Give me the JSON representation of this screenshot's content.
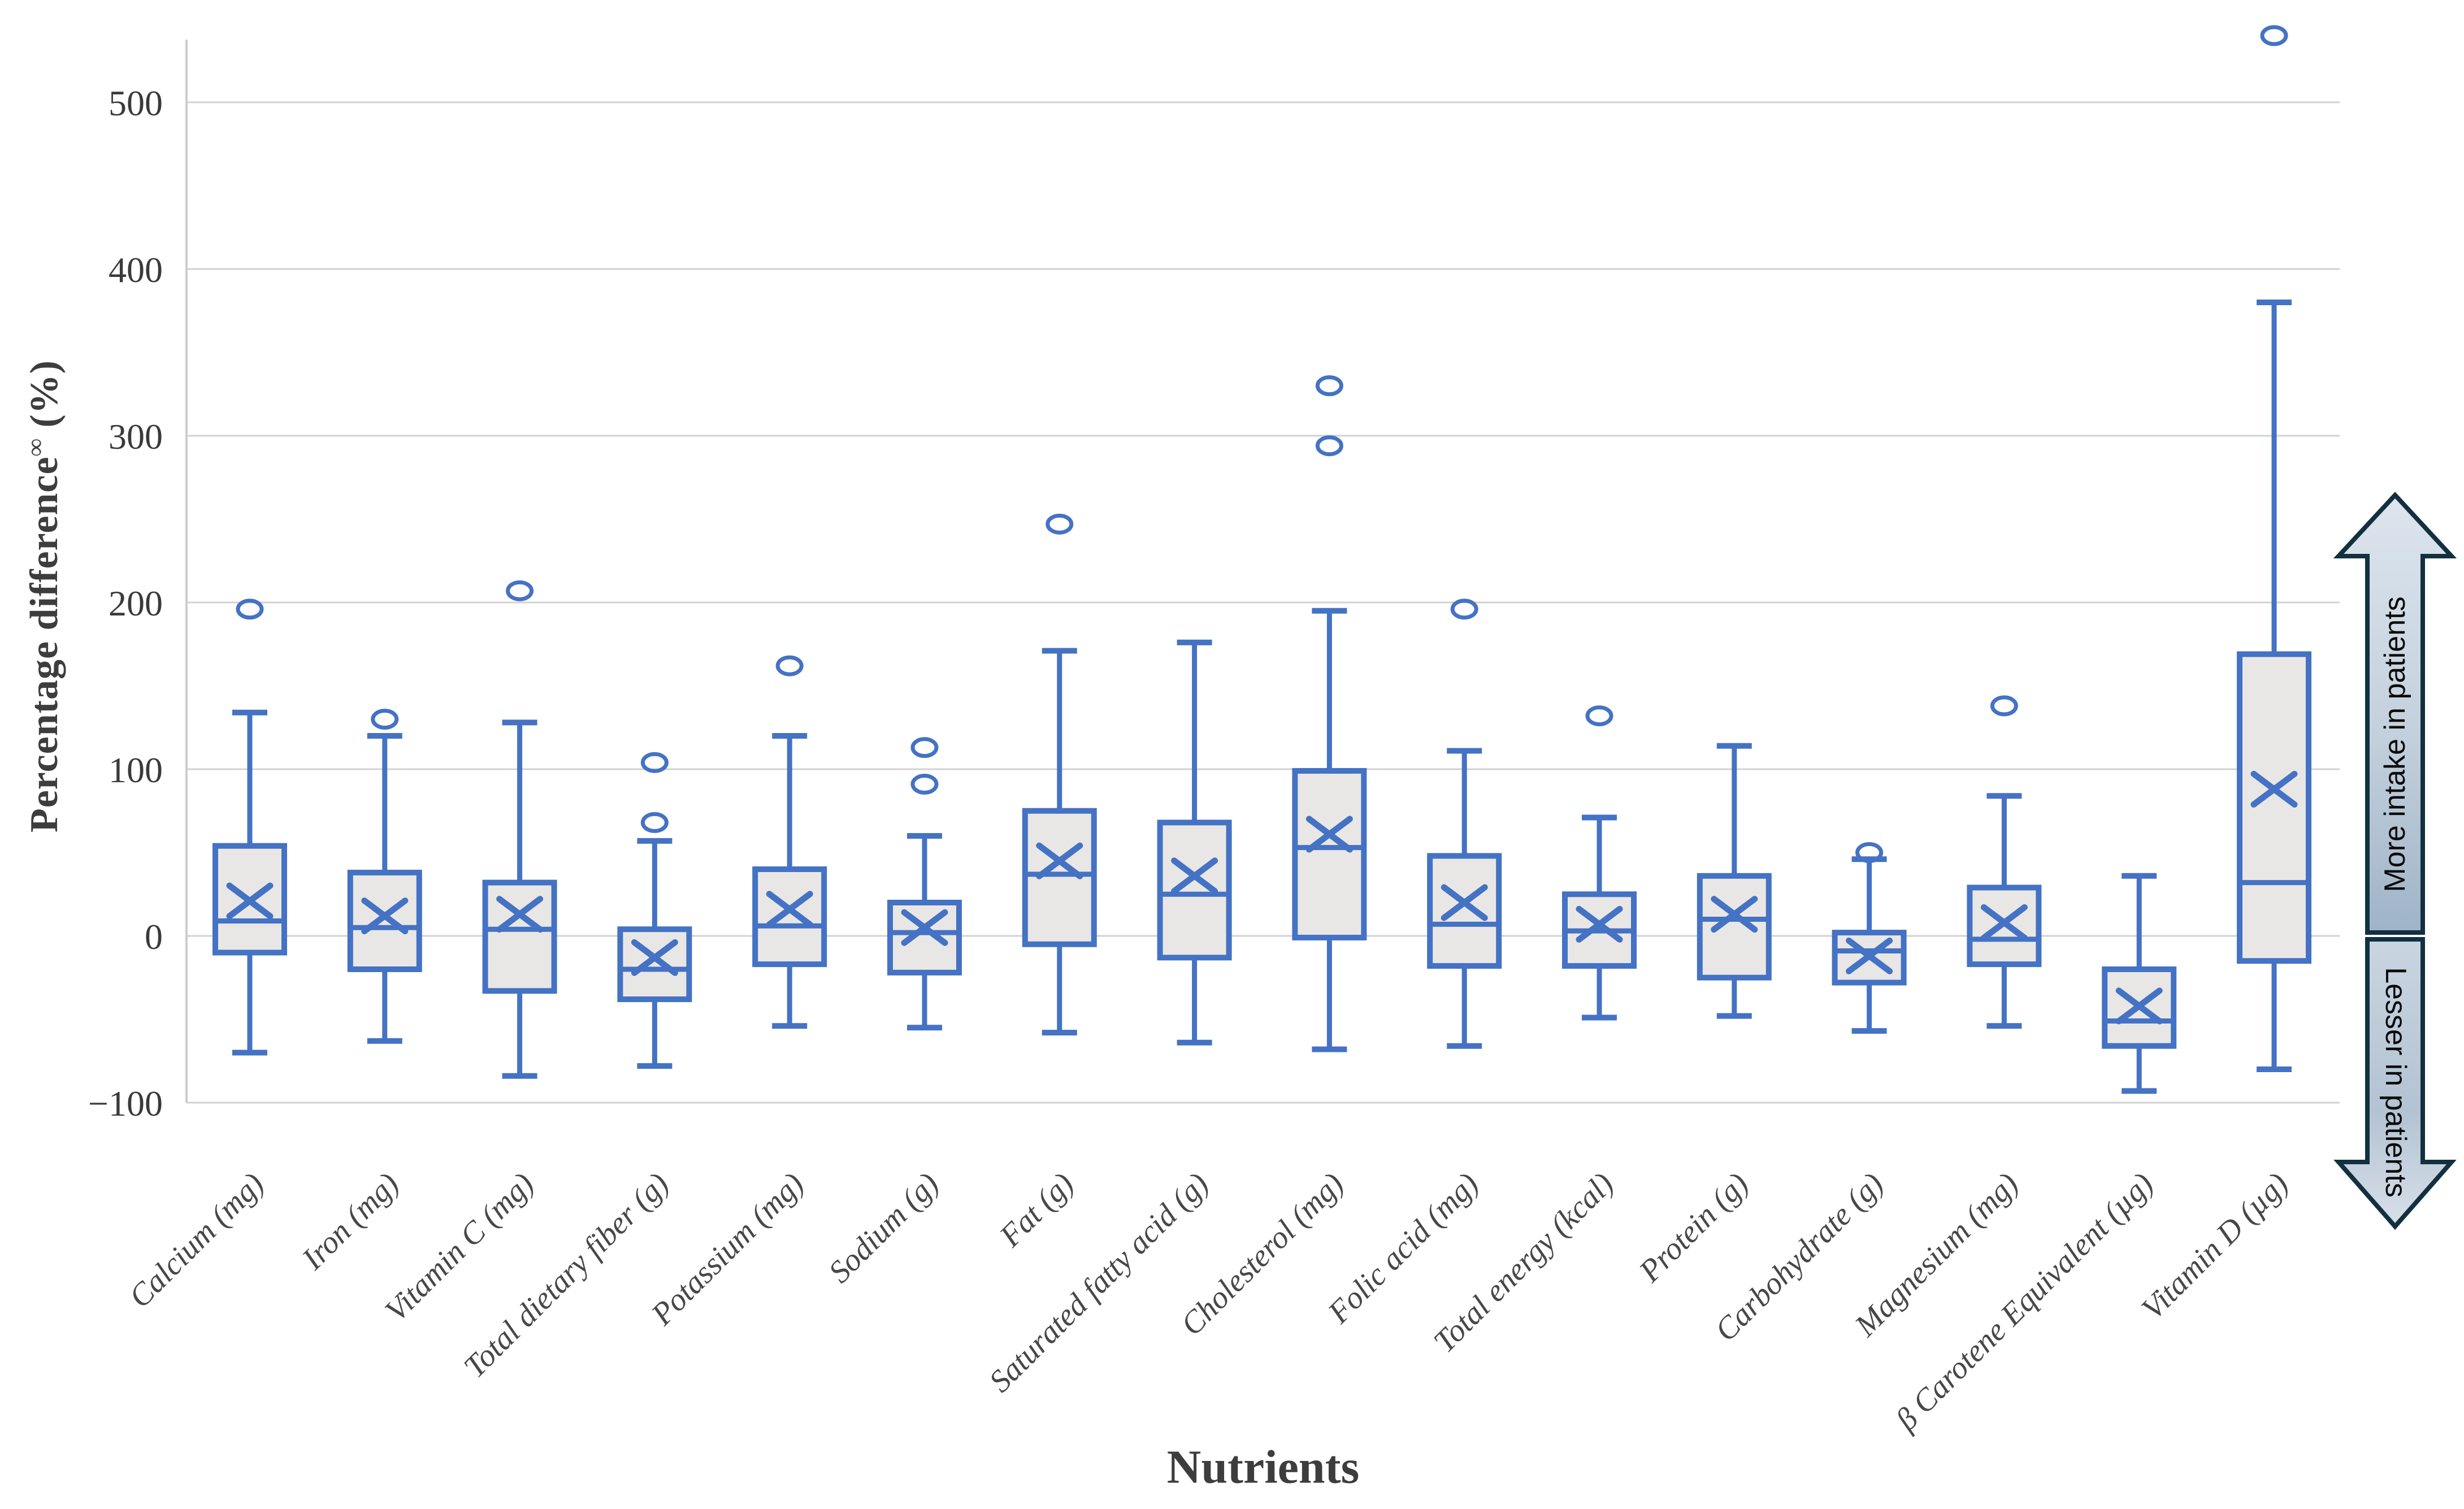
{
  "colors": {
    "box_stroke": "#4472c4",
    "box_fill": "#e9e7e5",
    "gridline": "#d2d2d2",
    "axis_line": "#cccccc",
    "tick_text": "#3a3a3a",
    "category_text": "#474747",
    "title_text": "#3d3d3d",
    "arrow_border": "#12303f",
    "arrow_fill_light": "#d6e0ea",
    "arrow_fill_dark": "#9fb4c7",
    "background": "#ffffff"
  },
  "annotations": {
    "more_label": "More intake in patients",
    "lesser_label": "Lesser in patients"
  },
  "chart_data": {
    "type": "box",
    "title": "",
    "xlabel": "Nutrients",
    "ylabel": "Percentage difference ∞ (%)",
    "ylabel_main": "Percentage difference",
    "ylabel_superscript": "∞",
    "ylabel_unit": "(%)",
    "ylim": [
      -100,
      560
    ],
    "yticks": [
      500,
      400,
      300,
      200,
      100,
      0,
      -100
    ],
    "grid": true,
    "legend_position": "none",
    "categories": [
      "Calcium (mg)",
      "Iron (mg)",
      "Vitamin C (mg)",
      "Total dietary fiber (g)",
      "Potassium (mg)",
      "Sodium (g)",
      "Fat (g)",
      "Saturated fatty acid (g)",
      "Cholesterol (mg)",
      "Folic acid (mg)",
      "Total energy (kcal)",
      "Protein (g)",
      "Carbohydrate (g)",
      "Magnesium (mg)",
      "β Carotene Equivalent (µg)",
      "Vitamin D (µg)"
    ],
    "series": [
      {
        "name": "Calcium (mg)",
        "low": -70,
        "q1": -10,
        "median": 9,
        "q3": 54,
        "high": 134,
        "mean": 21,
        "outliers": [
          196
        ]
      },
      {
        "name": "Iron (mg)",
        "low": -63,
        "q1": -20,
        "median": 5,
        "q3": 38,
        "high": 120,
        "mean": 12,
        "outliers": [
          130
        ]
      },
      {
        "name": "Vitamin C (mg)",
        "low": -84,
        "q1": -33,
        "median": 4,
        "q3": 32,
        "high": 128,
        "mean": 13,
        "outliers": [
          207
        ]
      },
      {
        "name": "Total dietary fiber (g)",
        "low": -78,
        "q1": -38,
        "median": -20,
        "q3": 4,
        "high": 57,
        "mean": -13,
        "outliers": [
          104,
          68
        ]
      },
      {
        "name": "Potassium (mg)",
        "low": -54,
        "q1": -17,
        "median": 6,
        "q3": 40,
        "high": 120,
        "mean": 16,
        "outliers": [
          162
        ]
      },
      {
        "name": "Sodium (g)",
        "low": -55,
        "q1": -22,
        "median": 2,
        "q3": 20,
        "high": 60,
        "mean": 5,
        "outliers": [
          113,
          91
        ]
      },
      {
        "name": "Fat (g)",
        "low": -58,
        "q1": -5,
        "median": 37,
        "q3": 75,
        "high": 171,
        "mean": 45,
        "outliers": [
          247
        ]
      },
      {
        "name": "Saturated fatty acid (g)",
        "low": -64,
        "q1": -13,
        "median": 25,
        "q3": 68,
        "high": 176,
        "mean": 36,
        "outliers": []
      },
      {
        "name": "Cholesterol (mg)",
        "low": -68,
        "q1": -1,
        "median": 53,
        "q3": 99,
        "high": 195,
        "mean": 61,
        "outliers": [
          330,
          294
        ]
      },
      {
        "name": "Folic acid (mg)",
        "low": -66,
        "q1": -18,
        "median": 7,
        "q3": 48,
        "high": 111,
        "mean": 20,
        "outliers": [
          196
        ]
      },
      {
        "name": "Total energy (kcal)",
        "low": -49,
        "q1": -18,
        "median": 3,
        "q3": 25,
        "high": 71,
        "mean": 7,
        "outliers": [
          132
        ]
      },
      {
        "name": "Protein (g)",
        "low": -48,
        "q1": -25,
        "median": 10,
        "q3": 36,
        "high": 114,
        "mean": 13,
        "outliers": []
      },
      {
        "name": "Carbohydrate (g)",
        "low": -57,
        "q1": -28,
        "median": -9,
        "q3": 2,
        "high": 46,
        "mean": -12,
        "outliers": [
          50
        ]
      },
      {
        "name": "Magnesium (mg)",
        "low": -54,
        "q1": -17,
        "median": -2,
        "q3": 29,
        "high": 84,
        "mean": 8,
        "outliers": [
          138
        ]
      },
      {
        "name": "β Carotene Equivalent (µg)",
        "low": -93,
        "q1": -66,
        "median": -51,
        "q3": -20,
        "high": 36,
        "mean": -42,
        "outliers": []
      },
      {
        "name": "Vitamin D (µg)",
        "low": -80,
        "q1": -15,
        "median": 32,
        "q3": 169,
        "high": 380,
        "mean": 88,
        "outliers": [
          540
        ]
      }
    ]
  }
}
